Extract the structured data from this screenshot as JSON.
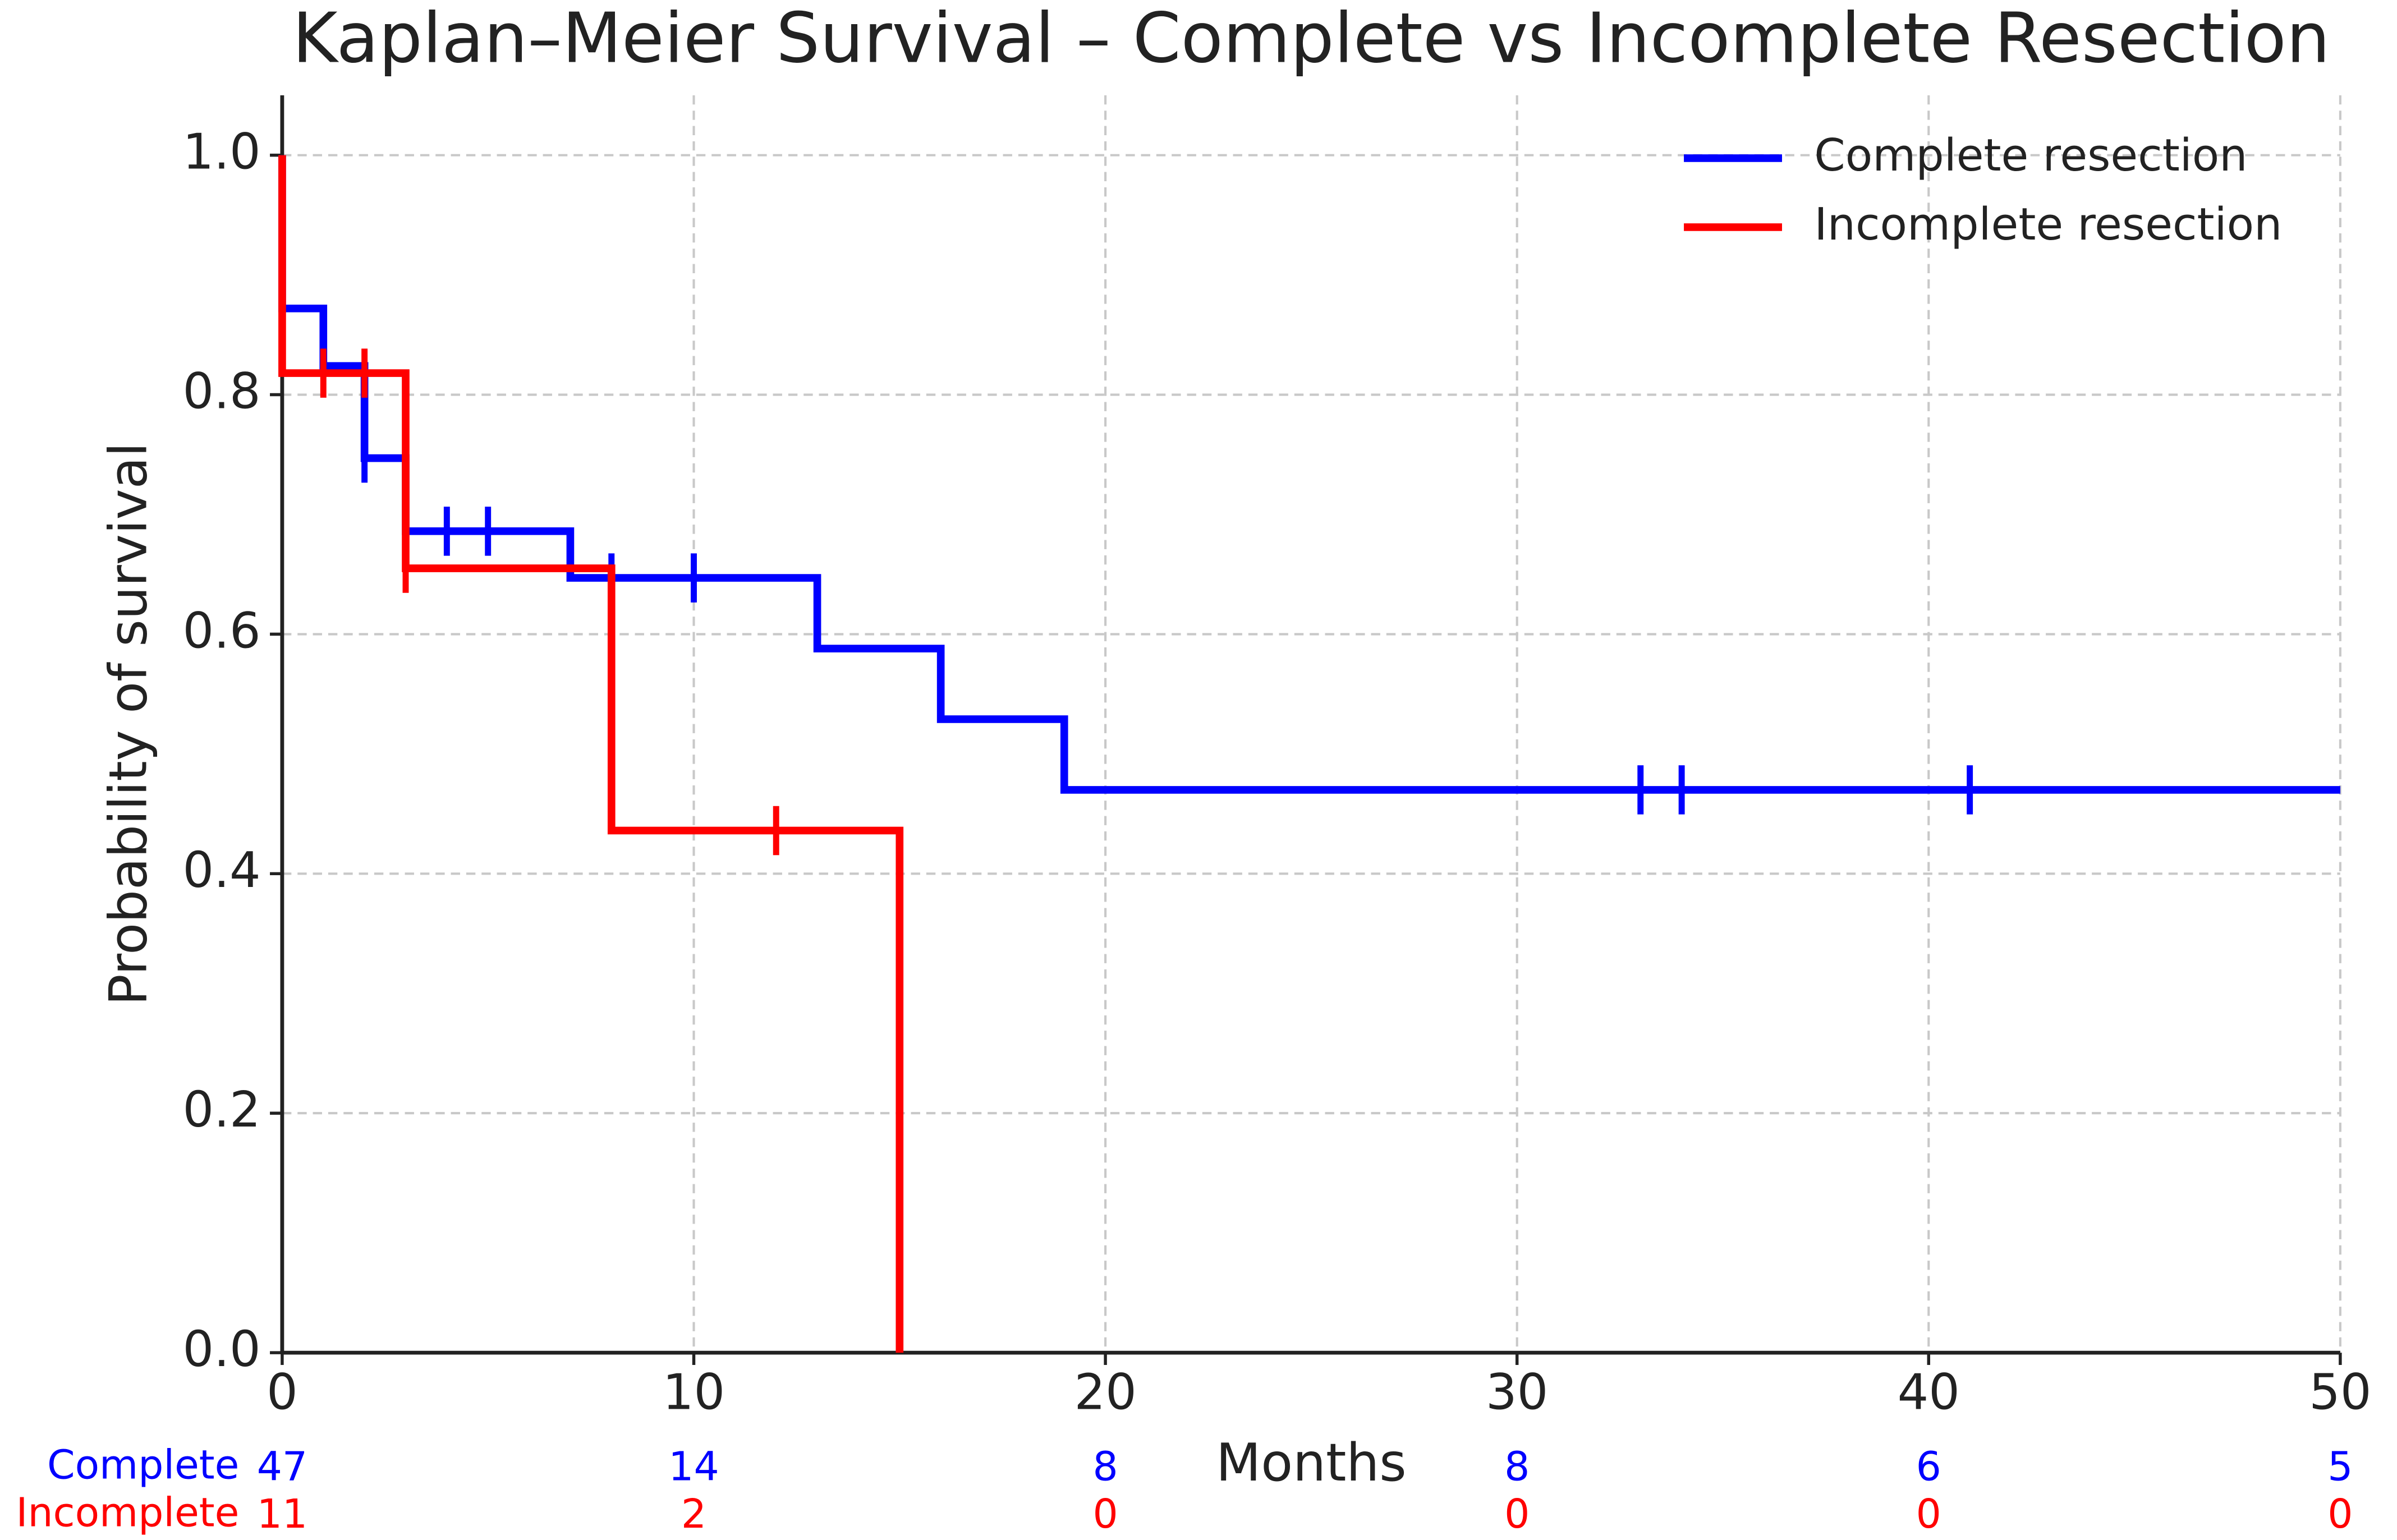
{
  "chart_data": {
    "type": "step",
    "title": "Kaplan–Meier Survival – Complete vs Incomplete Resection",
    "x_label": "Months",
    "y_label": "Probability of survival",
    "xlim": [
      0,
      50
    ],
    "ylim": [
      0,
      1.05
    ],
    "xticks": [
      0,
      10,
      20,
      30,
      40,
      50
    ],
    "yticks": [
      {
        "value": 0,
        "label": "0.0"
      },
      {
        "value": 0.2,
        "label": "0.2"
      },
      {
        "value": 0.4,
        "label": "0.4"
      },
      {
        "value": 0.6,
        "label": "0.6"
      },
      {
        "value": 0.8,
        "label": "0.8"
      },
      {
        "value": 1,
        "label": "1.0"
      }
    ],
    "grid": true,
    "legend": "upper right",
    "series": [
      {
        "name": "Complete resection",
        "color": "#0000ff",
        "x": [
          0,
          0,
          1,
          2,
          3,
          7,
          13,
          16,
          19,
          50
        ],
        "values": [
          1.0,
          0.872,
          0.824,
          0.747,
          0.686,
          0.647,
          0.588,
          0.529,
          0.47,
          0.47
        ],
        "censored": {
          "x": [
            2,
            4,
            5,
            8,
            10,
            33,
            34,
            41
          ],
          "values": [
            0.747,
            0.686,
            0.686,
            0.647,
            0.647,
            0.47,
            0.47,
            0.47
          ]
        }
      },
      {
        "name": "Incomplete resection",
        "color": "#ff0000",
        "x": [
          0,
          0,
          3,
          8,
          15
        ],
        "values": [
          1.0,
          0.818,
          0.655,
          0.436,
          0
        ],
        "censored": {
          "x": [
            1,
            2,
            3,
            12
          ],
          "values": [
            0.818,
            0.818,
            0.655,
            0.436
          ]
        }
      }
    ],
    "at_risk": {
      "times": [
        0,
        10,
        20,
        30,
        40,
        50
      ],
      "rows": [
        {
          "name": "Complete",
          "color": "#0000ff",
          "counts": [
            47,
            14,
            8,
            8,
            6,
            5
          ]
        },
        {
          "name": "Incomplete",
          "color": "#ff0000",
          "counts": [
            11,
            2,
            0,
            0,
            0,
            0
          ]
        }
      ]
    }
  }
}
